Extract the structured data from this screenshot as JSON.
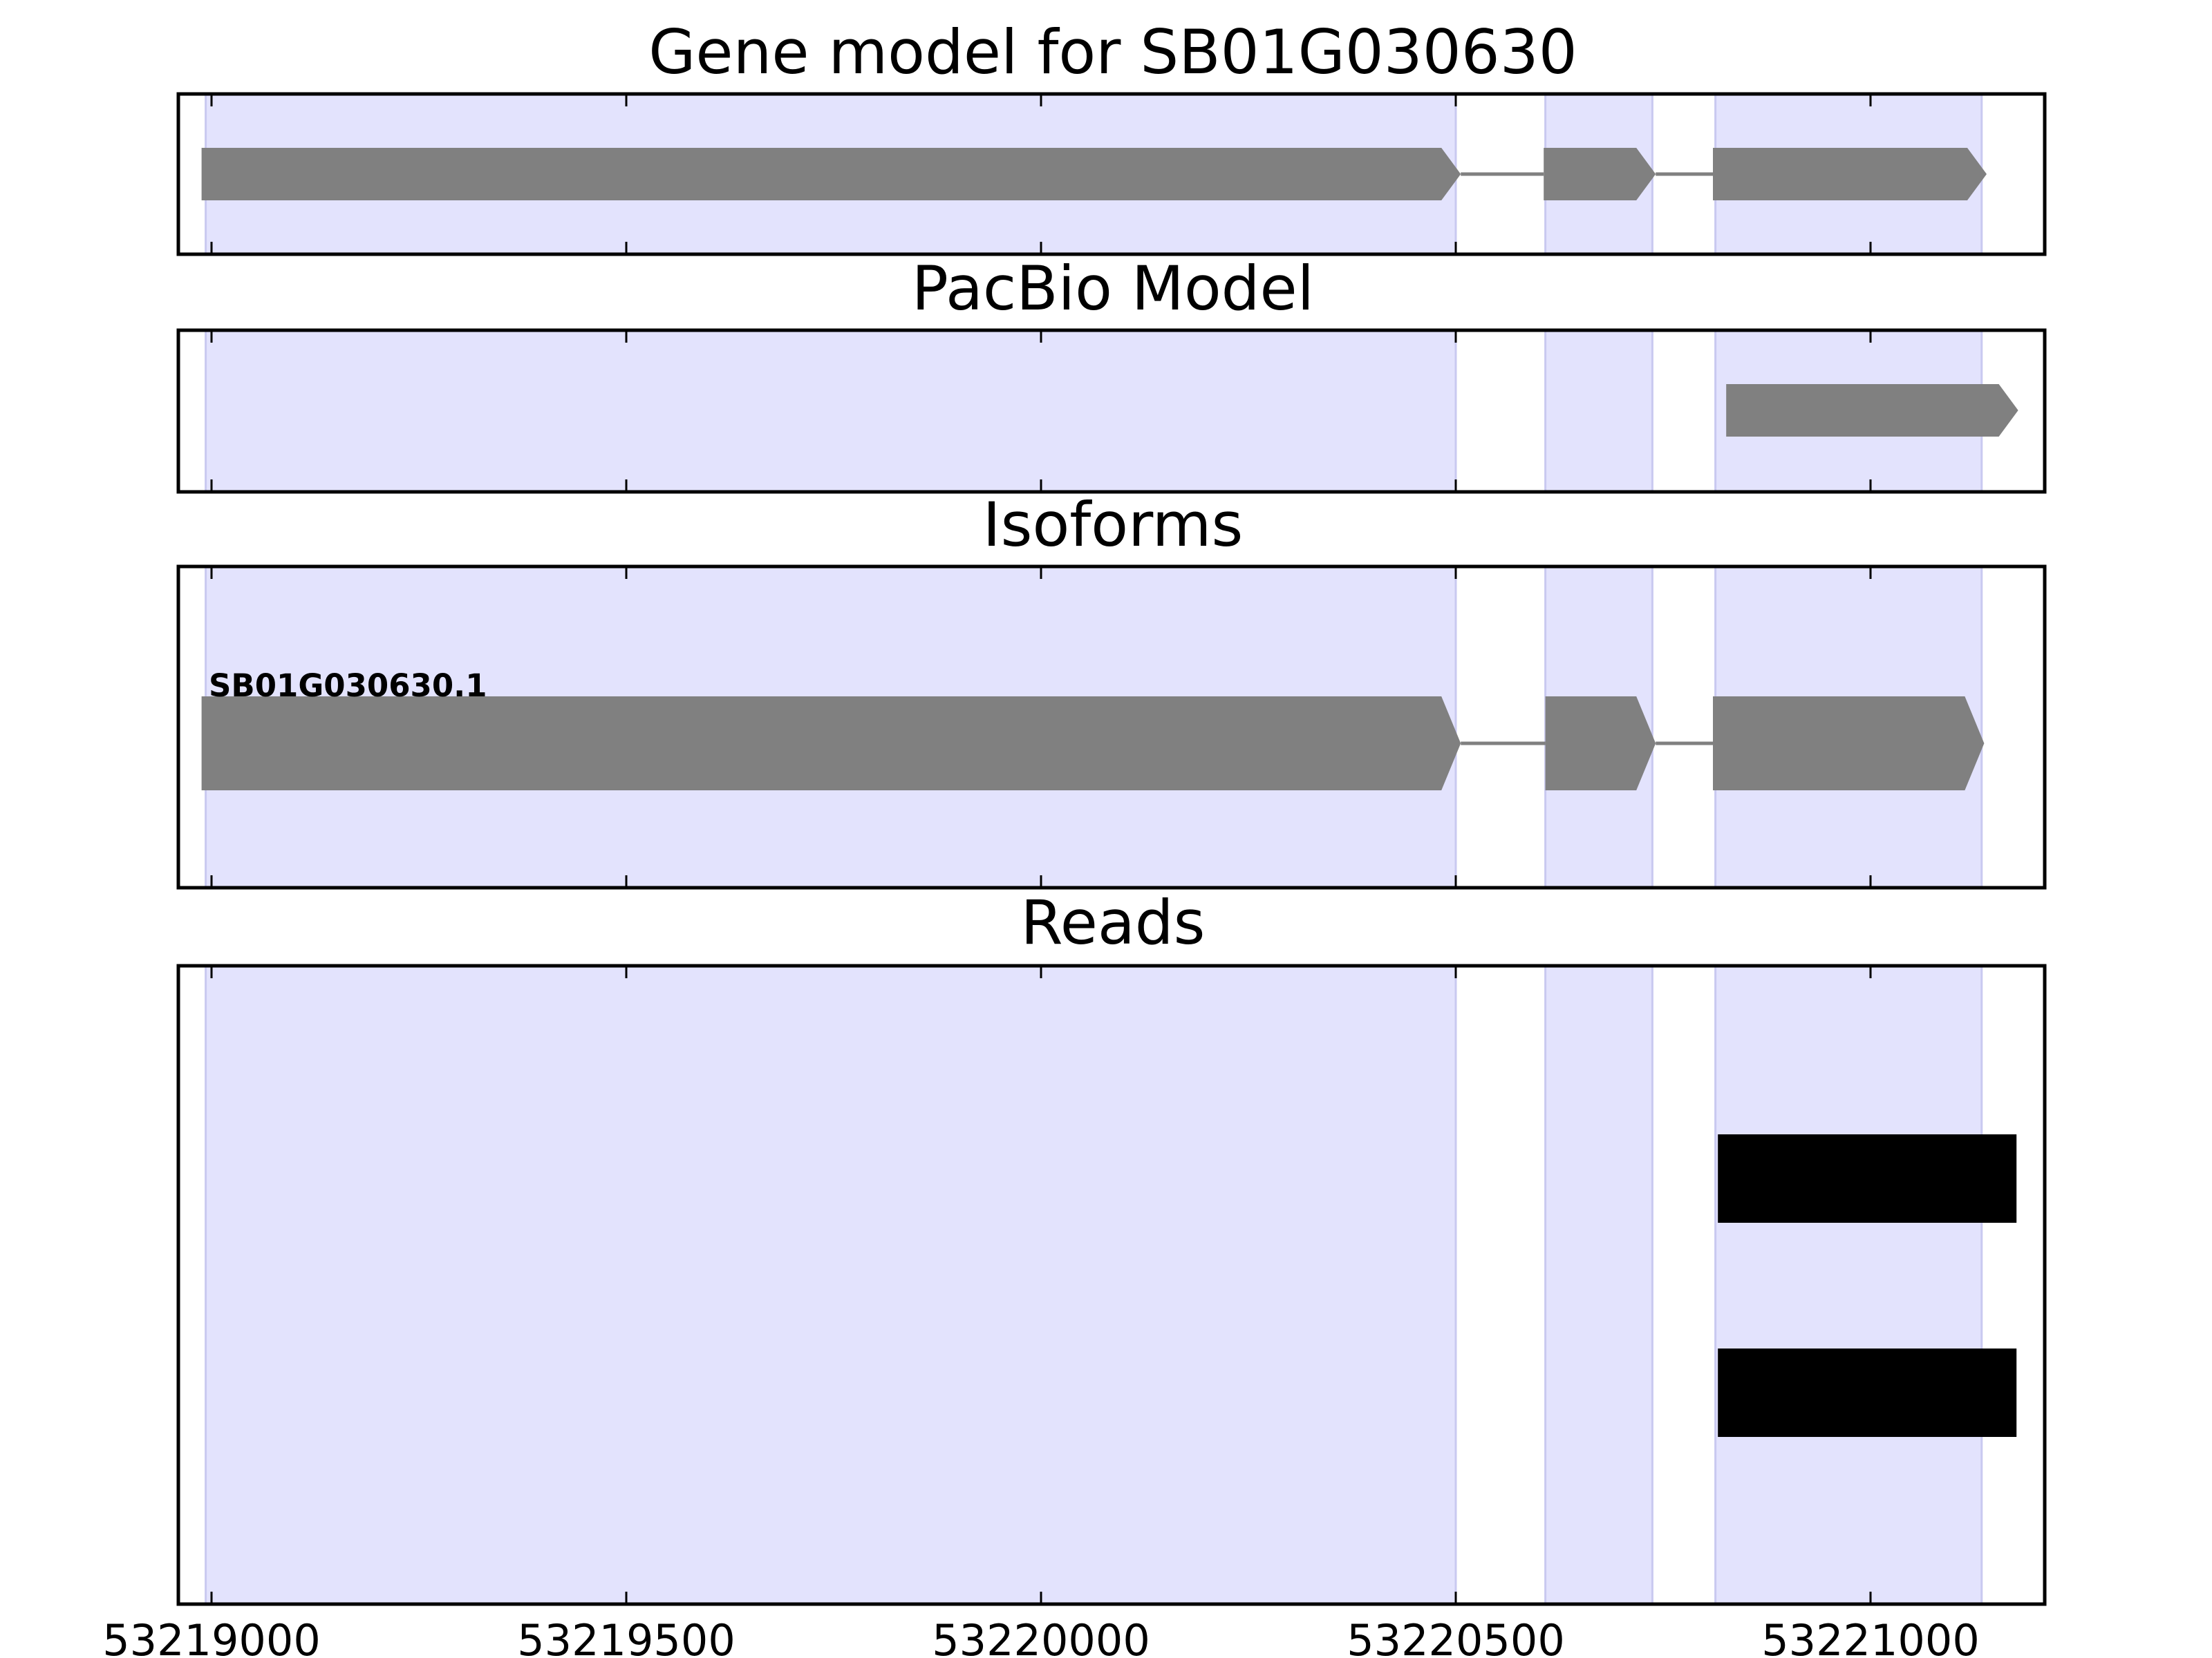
{
  "colors": {
    "exon_band": "#e3e3fd",
    "exon_band_edge": "#c9c9f0",
    "feature": "#808080",
    "intron_line": "#808080",
    "read": "#000000",
    "frame": "#000000"
  },
  "chart_data": {
    "type": "gene-track",
    "xlim": [
      53218960,
      53221210
    ],
    "x_ticks": [
      53219000,
      53219500,
      53220000,
      53220500,
      53221000
    ],
    "x_tick_labels": [
      "53219000",
      "53219500",
      "53220000",
      "53220500",
      "53221000"
    ],
    "exon_bands": [
      [
        53218993,
        53220500
      ],
      [
        53220608,
        53220737
      ],
      [
        53220813,
        53221134
      ]
    ],
    "panels": [
      {
        "id": "gene-model",
        "title": "Gene model for SB01G030630",
        "features": [
          {
            "start": 53218988,
            "end": 53220506,
            "strand": "+"
          },
          {
            "start": 53220606,
            "end": 53220741,
            "strand": "+"
          },
          {
            "start": 53220810,
            "end": 53221140,
            "strand": "+"
          }
        ]
      },
      {
        "id": "pacbio-model",
        "title": "PacBio Model",
        "features": [
          {
            "start": 53220826,
            "end": 53221178,
            "strand": "+"
          }
        ]
      },
      {
        "id": "isoforms",
        "title": "Isoforms",
        "isoforms": [
          {
            "label": "SB01G030630.1",
            "features": [
              {
                "start": 53218988,
                "end": 53220506,
                "strand": "+"
              },
              {
                "start": 53220608,
                "end": 53220741,
                "strand": "+"
              },
              {
                "start": 53220810,
                "end": 53221137,
                "strand": "+"
              }
            ]
          }
        ]
      },
      {
        "id": "reads",
        "title": "Reads",
        "reads": [
          {
            "start": 53220816,
            "end": 53221176
          },
          {
            "start": 53220816,
            "end": 53221176
          }
        ]
      }
    ]
  }
}
